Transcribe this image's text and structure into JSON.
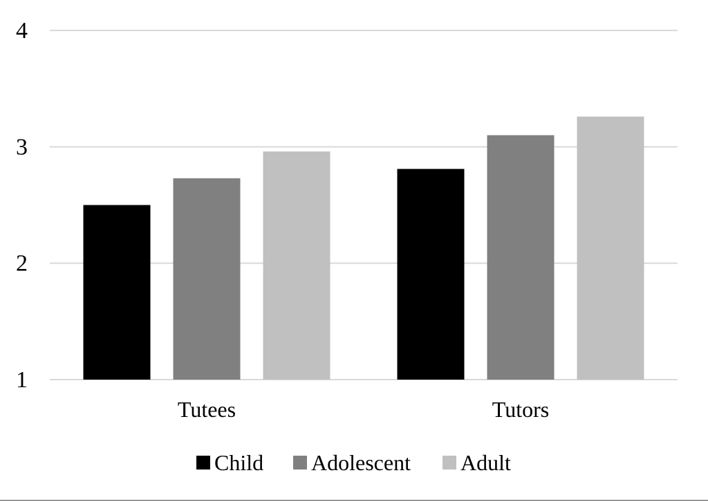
{
  "chart_data": {
    "type": "bar",
    "categories": [
      "Tutees",
      "Tutors"
    ],
    "series": [
      {
        "name": "Child",
        "values": [
          2.5,
          2.81
        ],
        "color": "#000000"
      },
      {
        "name": "Adolescent",
        "values": [
          2.73,
          3.1
        ],
        "color": "#808080"
      },
      {
        "name": "Adult",
        "values": [
          2.96,
          3.26
        ],
        "color": "#c0c0c0"
      }
    ],
    "title": "",
    "xlabel": "",
    "ylabel": "",
    "ylim": [
      1,
      4
    ],
    "yticks": [
      "1",
      "2",
      "3",
      "4"
    ],
    "grid": true,
    "gridline_color": "#d9d9d9",
    "legend_position": "bottom"
  }
}
